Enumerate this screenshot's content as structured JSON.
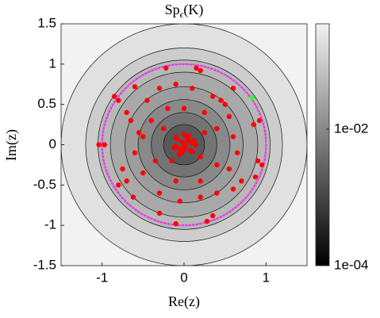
{
  "chart_data": {
    "type": "contour",
    "title": {
      "base": "Sp",
      "sub": "ϵ",
      "rest": "(K)"
    },
    "xlabel": "Re(z)",
    "ylabel": "Im(z)",
    "xlim": [
      -1.5,
      1.5
    ],
    "ylim": [
      -1.5,
      1.5
    ],
    "xticks": [
      -1,
      0,
      1
    ],
    "yticks": [
      -1.5,
      -1,
      -0.5,
      0,
      0.5,
      1,
      1.5
    ],
    "colorbar": {
      "scale": "log",
      "clim": [
        0.0001,
        0.35
      ],
      "ticks": [
        {
          "value": 0.01,
          "label": "1e-02"
        },
        {
          "value": 0.0001,
          "label": "1e-04"
        }
      ]
    },
    "contours": [
      {
        "level": 0.2,
        "radius": 1.5
      },
      {
        "level": 0.1,
        "radius": 1.2
      },
      {
        "level": 0.05,
        "radius": 1.05
      },
      {
        "level": 0.03,
        "radius": 0.9
      },
      {
        "level": 0.02,
        "radius": 0.72
      },
      {
        "level": 0.01,
        "radius": 0.56
      },
      {
        "level": 0.005,
        "radius": 0.4
      },
      {
        "level": 0.002,
        "radius": 0.25
      }
    ],
    "circle": {
      "radius": 1,
      "color": "#e43fe4"
    },
    "series": [
      {
        "name": "eigenvalues",
        "color": "#ff0000",
        "x": [
          -1.04,
          -0.97,
          -0.85,
          -0.8,
          -0.6,
          -0.22,
          0.15,
          0.2,
          0.45,
          0.6,
          0.85,
          0.92,
          0.9,
          0.95,
          0.87,
          0.6,
          0.35,
          0.28,
          -0.1,
          -0.3,
          -0.62,
          -0.8,
          -0.75,
          -0.7,
          -0.65,
          -0.55,
          -0.6,
          -0.5,
          -0.45,
          -0.3,
          -0.1,
          0.1,
          0.35,
          0.55,
          0.6,
          0.65,
          0.55,
          0.4,
          0.2,
          -0.05,
          -0.3,
          -0.4,
          -0.35,
          -0.2,
          0.0,
          0.25,
          0.4,
          0.4,
          0.2,
          -0.1,
          -0.25,
          0.25,
          0.2,
          -0.15,
          0.5,
          -0.5,
          0.7,
          -0.7,
          0.0,
          0.05,
          -0.05,
          0.1,
          -0.1,
          0.03,
          -0.03,
          0.08,
          -0.08,
          0.12,
          -0.12,
          0.0,
          0.06,
          -0.06,
          0.02,
          -0.02,
          0.1,
          -0.1,
          0.0,
          0.14
        ],
        "y": [
          0.0,
          0.0,
          0.6,
          0.55,
          0.72,
          0.95,
          0.95,
          0.92,
          0.55,
          0.7,
          0.25,
          0.3,
          -0.2,
          -0.25,
          -0.4,
          -0.55,
          -0.88,
          -0.95,
          -0.98,
          -0.85,
          -0.65,
          -0.5,
          -0.3,
          0.4,
          0.3,
          0.15,
          -0.1,
          -0.35,
          0.55,
          0.7,
          0.75,
          0.7,
          0.6,
          0.35,
          0.1,
          -0.1,
          -0.3,
          -0.6,
          -0.65,
          -0.7,
          -0.6,
          0.3,
          -0.2,
          0.45,
          0.45,
          0.4,
          0.2,
          -0.25,
          -0.45,
          -0.45,
          0.2,
          0.15,
          -0.15,
          -0.2,
          0.5,
          0.1,
          -0.45,
          -0.45,
          0.0,
          0.05,
          -0.05,
          0.02,
          -0.02,
          0.1,
          -0.1,
          -0.07,
          0.07,
          0.05,
          -0.04,
          0.13,
          0.11,
          -0.12,
          -0.03,
          0.03,
          -0.09,
          0.09,
          -0.06,
          0.0
        ]
      },
      {
        "name": "selected",
        "color": "#33ff33",
        "x": [
          0.83
        ],
        "y": [
          0.58
        ]
      }
    ]
  }
}
